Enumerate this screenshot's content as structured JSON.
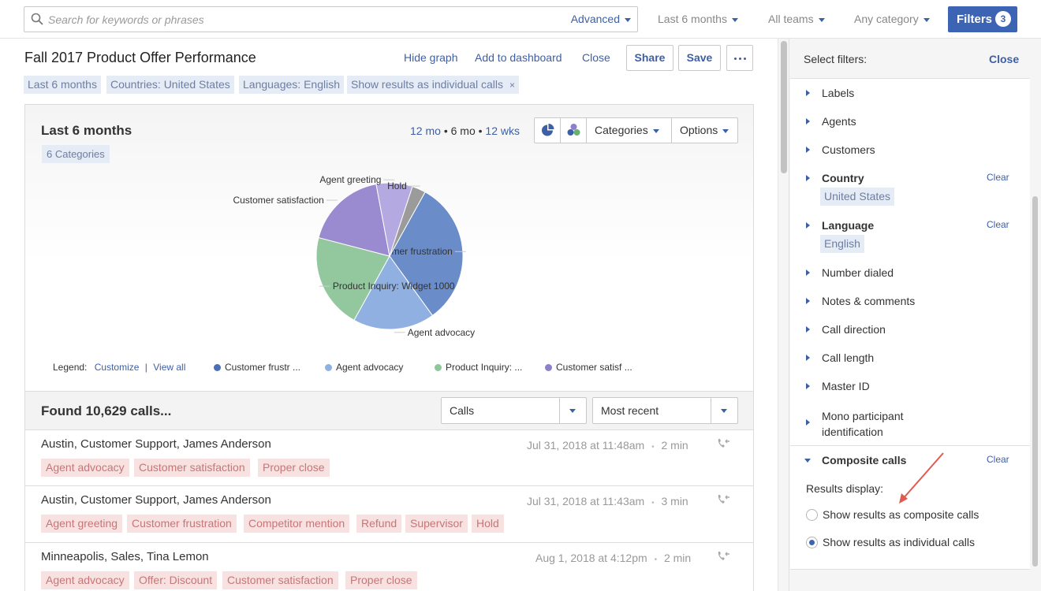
{
  "search": {
    "placeholder": "Search for keywords or phrases",
    "advanced_label": "Advanced"
  },
  "topbar": {
    "time_filter": "Last 6 months",
    "team_filter": "All teams",
    "category_filter": "Any category",
    "filters_label": "Filters",
    "filters_count": "3"
  },
  "report": {
    "title": "Fall 2017 Product Offer Performance",
    "hide_graph": "Hide graph",
    "add_dashboard": "Add to dashboard",
    "close": "Close",
    "share": "Share",
    "save": "Save"
  },
  "active_filters": [
    "Last 6 months",
    "Countries: United States",
    "Languages: English",
    "Show results as individual calls"
  ],
  "active_filters_remove_icon": "×",
  "graph": {
    "title": "Last 6 months",
    "categories_chip": "6 Categories",
    "range": {
      "opt1": "12 mo",
      "sep": "•",
      "current": "6 mo",
      "opt3": "12 wks"
    },
    "categories_label": "Categories",
    "options_label": "Options",
    "legend_label": "Legend:",
    "legend_customize": "Customize",
    "legend_sep": "|",
    "legend_view_all": "View all",
    "legend_items": [
      {
        "label": "Customer frustr ...",
        "color": "#5d86c9"
      },
      {
        "label": "Agent advocacy",
        "color": "#8fb0e0"
      },
      {
        "label": "Product Inquiry: ...",
        "color": "#8ec89a"
      },
      {
        "label": "Customer satisf ...",
        "color": "#8e7fcc"
      }
    ]
  },
  "chart_data": {
    "type": "pie",
    "slices": [
      {
        "label": "Customer frustration",
        "value": 32,
        "color": "#6a8cc9"
      },
      {
        "label": "Agent advocacy",
        "value": 18,
        "color": "#8fb0e0"
      },
      {
        "label": "Product Inquiry: Widget 1000",
        "value": 21,
        "color": "#93c89f"
      },
      {
        "label": "Customer satisfaction",
        "value": 18,
        "color": "#9a8bd0"
      },
      {
        "label": "Agent greeting",
        "value": 8,
        "color": "#b4a9e0"
      },
      {
        "label": "Hold",
        "value": 3,
        "color": "#9b9b9b"
      }
    ]
  },
  "results": {
    "found_text": "Found 10,629 calls...",
    "type_select": "Calls",
    "sort_select": "Most recent"
  },
  "calls": [
    {
      "who": "Austin, Customer Support, James Anderson",
      "when": "Jul 31, 2018 at 11:48am",
      "sep": "•",
      "length": "2 min",
      "tags": [
        "Agent advocacy",
        "Customer satisfaction",
        "Proper close"
      ]
    },
    {
      "who": "Austin, Customer Support, James Anderson",
      "when": "Jul 31, 2018 at 11:43am",
      "sep": "•",
      "length": "3 min",
      "tags": [
        "Agent greeting",
        "Customer frustration",
        "Competitor mention",
        "Refund",
        "Supervisor",
        "Hold"
      ]
    },
    {
      "who": "Minneapolis, Sales, Tina Lemon",
      "when": "Aug 1, 2018 at 4:12pm",
      "sep": "•",
      "length": "2 min",
      "tags": [
        "Agent advocacy",
        "Offer: Discount",
        "Customer satisfaction",
        "Proper close"
      ]
    }
  ],
  "sidebar": {
    "title": "Select filters:",
    "close": "Close",
    "items": [
      {
        "label": "Labels"
      },
      {
        "label": "Agents"
      },
      {
        "label": "Customers"
      },
      {
        "label": "Country",
        "clear": "Clear",
        "value": "United States"
      },
      {
        "label": "Language",
        "clear": "Clear",
        "value": "English"
      },
      {
        "label": "Number dialed"
      },
      {
        "label": "Notes & comments"
      },
      {
        "label": "Call direction"
      },
      {
        "label": "Call length"
      },
      {
        "label": "Master ID"
      },
      {
        "label": "Mono participant identification"
      }
    ],
    "composite": {
      "label": "Composite calls",
      "clear": "Clear",
      "results_display": "Results display:",
      "opt_composite": "Show results as composite calls",
      "opt_individual": "Show results as individual calls",
      "selected": "individual"
    }
  },
  "colors": {
    "accent": "#3d63b4",
    "link": "#3d5fa6",
    "tag_bg": "#f8e1e1",
    "tag_text": "#c67676",
    "chip_bg": "#e6ecf6",
    "annotation_arrow": "#e05a4f"
  }
}
